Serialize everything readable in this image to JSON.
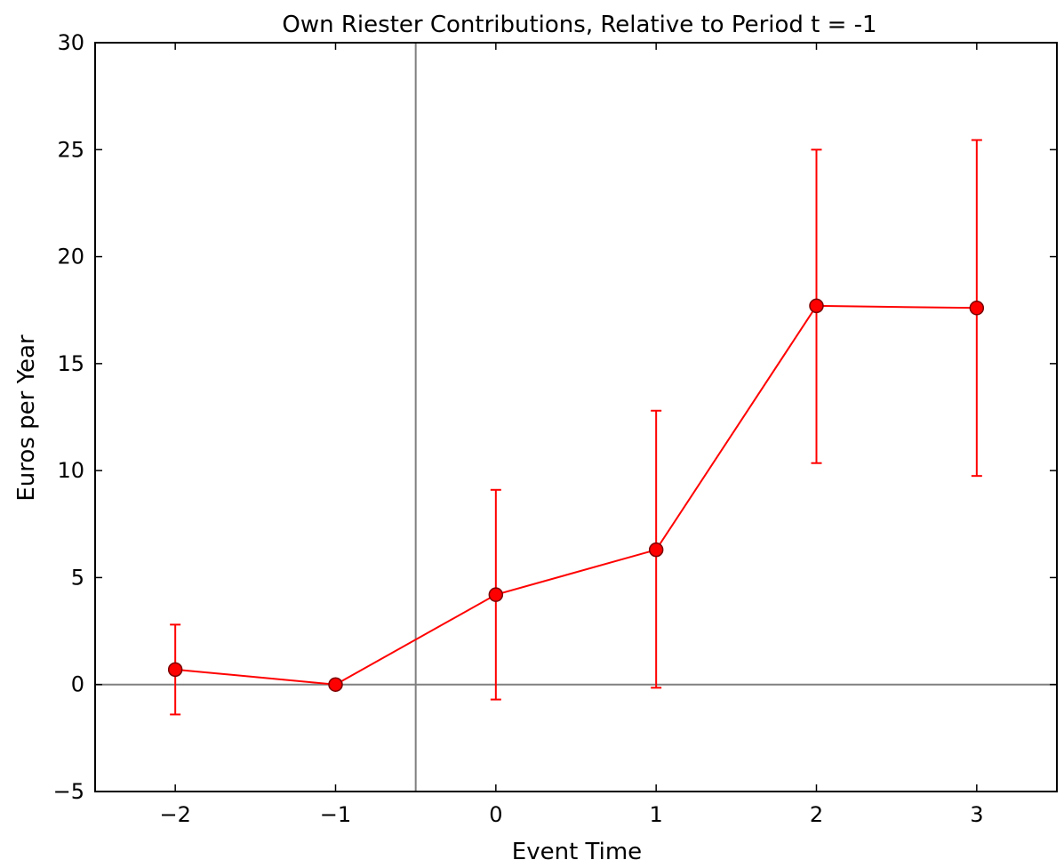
{
  "chart_data": {
    "type": "line",
    "title": "Own Riester Contributions, Relative to Period t = -1",
    "xlabel": "Event Time",
    "ylabel": "Euros per Year",
    "xlim": [
      -2.5,
      3.5
    ],
    "ylim": [
      -5,
      30
    ],
    "x_ticks": [
      -2,
      -1,
      0,
      1,
      2,
      3
    ],
    "x_tick_labels": [
      "−2",
      "−1",
      "0",
      "1",
      "2",
      "3"
    ],
    "y_ticks": [
      -5,
      0,
      5,
      10,
      15,
      20,
      25,
      30
    ],
    "y_tick_labels": [
      "−5",
      "0",
      "5",
      "10",
      "15",
      "20",
      "25",
      "30"
    ],
    "grid": false,
    "reference_lines": {
      "horizontal_y": 0,
      "vertical_x": -0.5
    },
    "colors": {
      "series": "#ff0000",
      "marker_edge": "#7a0000",
      "reference": "#808080"
    },
    "series": [
      {
        "x": [
          -2,
          -1,
          0,
          1,
          2,
          3
        ],
        "values": [
          0.7,
          0.0,
          4.2,
          6.3,
          17.7,
          17.6
        ],
        "ci_lower": [
          -1.4,
          0.0,
          -0.7,
          -0.15,
          10.35,
          9.75
        ],
        "ci_upper": [
          2.8,
          0.0,
          9.1,
          12.8,
          25.0,
          25.45
        ]
      }
    ]
  }
}
